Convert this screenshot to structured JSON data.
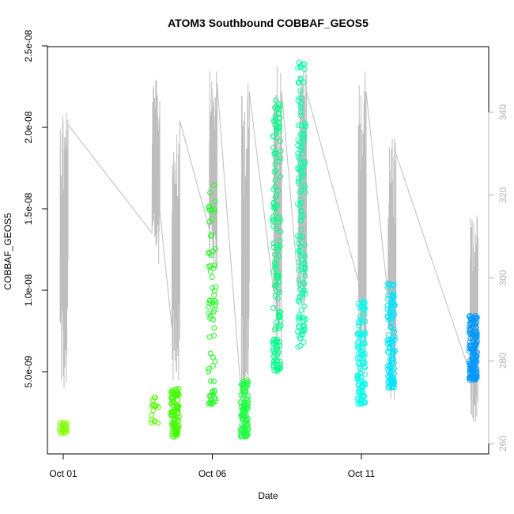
{
  "chart_data": {
    "type": "scatter",
    "title": "ATOM3 Southbound COBBAF_GEOS5",
    "xlabel": "Date",
    "ylabel": "COBBAF_GEOS5",
    "xlim_days": [
      0.5,
      0.0
    ],
    "x_ticks": [
      {
        "label": "Oct 01",
        "value": "2016-10-01"
      },
      {
        "label": "Oct 06",
        "value": "2016-10-06"
      },
      {
        "label": "Oct 11",
        "value": "2016-10-11"
      }
    ],
    "y_ticks": [
      "5.0e-09",
      "1.0e-08",
      "1.5e-08",
      "2.0e-08",
      "2.5e-08"
    ],
    "y_tick_values": [
      5e-09,
      1e-08,
      1.5e-08,
      2e-08,
      2.5e-08
    ],
    "ylim": [
      0,
      2.5e-08
    ],
    "y2_ticks": [
      "260",
      "280",
      "300",
      "320",
      "340"
    ],
    "y2_tick_values": [
      260,
      280,
      300,
      320,
      340
    ],
    "y2lim": [
      257,
      352
    ],
    "line_color": "#bebebe",
    "point_color_scale": [
      "#66ff00",
      "#00ff33",
      "#00ff99",
      "#00ffff",
      "#0099ff"
    ],
    "grid": false,
    "clusters": [
      {
        "x": "2016-10-01",
        "y_range": [
          1.2e-09,
          1.9e-09
        ],
        "color": "#80ff00",
        "n": 24,
        "line": [
          270,
          345,
          304,
          337
        ]
      },
      {
        "x": "2016-10-04 02:00",
        "y_range": [
          1.7e-09,
          3.5e-09
        ],
        "color": "#55ff00",
        "n": 16,
        "line": [
          303,
          348,
          320,
          316
        ]
      },
      {
        "x": "2016-10-04 18:00",
        "y_range": [
          1e-09,
          4e-09
        ],
        "color": "#40ff00",
        "n": 90,
        "line": [
          275,
          341,
          285,
          338
        ]
      },
      {
        "x": "2016-10-06",
        "y_range": [
          3e-09,
          1.7e-08
        ],
        "color": "#1aff1a",
        "n": 70,
        "line": [
          300,
          350,
          302,
          347
        ]
      },
      {
        "x": "2016-10-07 02:00",
        "y_range": [
          1e-09,
          4.5e-09
        ],
        "color": "#22ff44",
        "n": 110,
        "line": [
          268,
          348,
          299,
          345
        ]
      },
      {
        "x": "2016-10-08 04:00",
        "y_range": [
          5e-09,
          2.2e-08
        ],
        "color": "#00ff88",
        "n": 150,
        "line": [
          280,
          352,
          300,
          345
        ]
      },
      {
        "x": "2016-10-09",
        "y_range": [
          6.5e-09,
          2.4e-08
        ],
        "color": "#00ffaa",
        "n": 140,
        "line": [
          290,
          352,
          300,
          345
        ]
      },
      {
        "x": "2016-10-11",
        "y_range": [
          3e-09,
          9.5e-09
        ],
        "color": "#00ffee",
        "n": 110,
        "line": [
          275,
          350,
          285,
          345
        ]
      },
      {
        "x": "2016-10-12",
        "y_range": [
          4e-09,
          1.05e-08
        ],
        "color": "#00e5ff",
        "n": 120,
        "line": [
          270,
          335,
          285,
          330
        ]
      },
      {
        "x": "2016-10-14 18:00",
        "y_range": [
          4.5e-09,
          8.5e-09
        ],
        "color": "#0099ff",
        "n": 140,
        "line": [
          265,
          316,
          270,
          310
        ]
      }
    ]
  }
}
